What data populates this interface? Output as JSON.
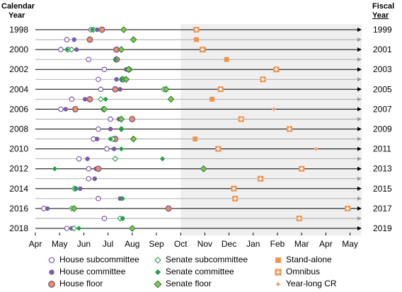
{
  "chart_data": {
    "type": "scatter",
    "title": "",
    "left_axis_title": [
      "Calendar",
      "Year"
    ],
    "right_axis_title": [
      "Fiscal",
      "Year"
    ],
    "x_tick_labels": [
      "Apr",
      "May",
      "Jun",
      "Jul",
      "Aug",
      "Sep",
      "Oct",
      "Nov",
      "Dec",
      "Jan",
      "Feb",
      "Mar",
      "Apr",
      "May"
    ],
    "calendar_years": [
      "1998",
      "1999",
      "2000",
      "2001",
      "2002",
      "2003",
      "2004",
      "2005",
      "2006",
      "2007",
      "2008",
      "2009",
      "2010",
      "2011",
      "2012",
      "2013",
      "2014",
      "2015",
      "2016",
      "2017",
      "2018"
    ],
    "calendar_year_labels": [
      "1998",
      "2000",
      "2002",
      "2004",
      "2006",
      "2008",
      "2010",
      "2012",
      "2014",
      "2016",
      "2018"
    ],
    "fiscal_year_labels": [
      "1999",
      "2001",
      "2003",
      "2005",
      "2007",
      "2009",
      "2011",
      "2013",
      "2015",
      "2017",
      "2019"
    ],
    "x_unit": "month index from Apr 1 of calendar year (0 = Apr 1, 6 = Oct 1, 13 = May 1 of next year)",
    "xlim": [
      0,
      13
    ],
    "shaded_region": [
      6,
      13
    ],
    "colors": {
      "purple": "#7B5BA6",
      "green": "#22A046",
      "orange": "#F0924A",
      "lightgreen": "#8BC34A"
    },
    "legend_position": "bottom",
    "series": [
      {
        "name": "House subcommittee",
        "marker": "open-circle",
        "color": "#7B5BA6",
        "points": [
          {
            "year": "1998",
            "x": 2.3
          },
          {
            "year": "1999",
            "x": 1.3
          },
          {
            "year": "2000",
            "x": 1.05
          },
          {
            "year": "2000",
            "x": 1.35
          },
          {
            "year": "2001",
            "x": 2.2
          },
          {
            "year": "2002",
            "x": 2.85
          },
          {
            "year": "2003",
            "x": 2.6
          },
          {
            "year": "2004",
            "x": 2.7
          },
          {
            "year": "2005",
            "x": 1.5
          },
          {
            "year": "2006",
            "x": 1.05
          },
          {
            "year": "2007",
            "x": 3.1
          },
          {
            "year": "2008",
            "x": 2.6
          },
          {
            "year": "2009",
            "x": 2.4
          },
          {
            "year": "2010",
            "x": 2.95
          },
          {
            "year": "2011",
            "x": 1.8
          },
          {
            "year": "2012",
            "x": 2.2
          },
          {
            "year": "2013",
            "x": 2.2
          },
          {
            "year": "2014",
            "x": 1.65
          },
          {
            "year": "2015",
            "x": 2.6
          },
          {
            "year": "2016",
            "x": 0.35
          },
          {
            "year": "2017",
            "x": 2.85
          },
          {
            "year": "2018",
            "x": 1.3
          }
        ]
      },
      {
        "name": "House committee",
        "marker": "filled-circle",
        "color": "#7B5BA6",
        "points": [
          {
            "year": "1998",
            "x": 2.55
          },
          {
            "year": "1999",
            "x": 1.6
          },
          {
            "year": "2000",
            "x": 1.7
          },
          {
            "year": "2001",
            "x": 3.4
          },
          {
            "year": "2002",
            "x": 3.75
          },
          {
            "year": "2003",
            "x": 3.35
          },
          {
            "year": "2004",
            "x": 3.5
          },
          {
            "year": "2005",
            "x": 2.05
          },
          {
            "year": "2006",
            "x": 1.25
          },
          {
            "year": "2007",
            "x": 3.45
          },
          {
            "year": "2008",
            "x": 3.1
          },
          {
            "year": "2009",
            "x": 2.55
          },
          {
            "year": "2010",
            "x": 3.25
          },
          {
            "year": "2011",
            "x": 2.15
          },
          {
            "year": "2012",
            "x": 2.5
          },
          {
            "year": "2013",
            "x": 2.45
          },
          {
            "year": "2014",
            "x": 1.85
          },
          {
            "year": "2015",
            "x": 3.5
          },
          {
            "year": "2016",
            "x": 0.5
          },
          {
            "year": "2017",
            "x": 3.6
          },
          {
            "year": "2018",
            "x": 1.5
          }
        ]
      },
      {
        "name": "House floor",
        "marker": "orange-circle-purple-ring",
        "color": "#F0924A",
        "points": [
          {
            "year": "1998",
            "x": 2.75
          },
          {
            "year": "1999",
            "x": 2.25
          },
          {
            "year": "2000",
            "x": 3.35
          },
          {
            "year": "2001",
            "x": 3.35
          },
          {
            "year": "2003",
            "x": 3.6
          },
          {
            "year": "2004",
            "x": 3.3
          },
          {
            "year": "2005",
            "x": 2.25
          },
          {
            "year": "2006",
            "x": 1.65
          },
          {
            "year": "2007",
            "x": 4.0
          },
          {
            "year": "2009",
            "x": 3.3
          },
          {
            "year": "2012",
            "x": 2.6
          },
          {
            "year": "2016",
            "x": 5.5
          }
        ]
      },
      {
        "name": "Senate subcommittee",
        "marker": "open-diamond",
        "color": "#22A046",
        "points": [
          {
            "year": "1998",
            "x": 2.4
          },
          {
            "year": "2000",
            "x": 1.5
          },
          {
            "year": "2002",
            "x": 3.9
          },
          {
            "year": "2003",
            "x": 3.6
          },
          {
            "year": "2004",
            "x": 5.3
          },
          {
            "year": "2005",
            "x": 2.7
          },
          {
            "year": "2006",
            "x": 2.8
          },
          {
            "year": "2008",
            "x": 3.55
          },
          {
            "year": "2009",
            "x": 3.2
          },
          {
            "year": "2011",
            "x": 3.3
          },
          {
            "year": "2014",
            "x": 1.6
          },
          {
            "year": "2016",
            "x": 1.5
          },
          {
            "year": "2017",
            "x": 3.5
          },
          {
            "year": "2018",
            "x": 1.6
          }
        ]
      },
      {
        "name": "Senate committee",
        "marker": "filled-diamond",
        "color": "#22A046",
        "points": [
          {
            "year": "1998",
            "x": 2.35
          },
          {
            "year": "2000",
            "x": 1.3
          },
          {
            "year": "2001",
            "x": 3.3
          },
          {
            "year": "2002",
            "x": 3.8
          },
          {
            "year": "2003",
            "x": 3.55
          },
          {
            "year": "2004",
            "x": 5.4
          },
          {
            "year": "2005",
            "x": 2.9
          },
          {
            "year": "2006",
            "x": 2.8
          },
          {
            "year": "2008",
            "x": 3.55
          },
          {
            "year": "2009",
            "x": 3.1
          },
          {
            "year": "2010",
            "x": 3.55
          },
          {
            "year": "2011",
            "x": 5.25
          },
          {
            "year": "2012",
            "x": 0.8
          },
          {
            "year": "2014",
            "x": 1.65
          },
          {
            "year": "2015",
            "x": 3.6
          },
          {
            "year": "2016",
            "x": 1.6
          },
          {
            "year": "2017",
            "x": 3.6
          },
          {
            "year": "2018",
            "x": 1.8
          }
        ]
      },
      {
        "name": "Senate floor",
        "marker": "green-diamond-dark-border",
        "color": "#8BC34A",
        "points": [
          {
            "year": "1998",
            "x": 3.65
          },
          {
            "year": "1999",
            "x": 4.05
          },
          {
            "year": "2000",
            "x": 3.55
          },
          {
            "year": "2002",
            "x": 3.85
          },
          {
            "year": "2003",
            "x": 3.75
          },
          {
            "year": "2004",
            "x": 5.4
          },
          {
            "year": "2005",
            "x": 5.6
          },
          {
            "year": "2006",
            "x": 2.85
          },
          {
            "year": "2007",
            "x": 3.55
          },
          {
            "year": "2009",
            "x": 4.05
          },
          {
            "year": "2012",
            "x": 6.95
          },
          {
            "year": "2016",
            "x": 1.6
          },
          {
            "year": "2018",
            "x": 4.0
          }
        ]
      },
      {
        "name": "Stand-alone",
        "marker": "filled-square",
        "color": "#F0924A",
        "points": [
          {
            "year": "1999",
            "x": 6.65
          },
          {
            "year": "2000",
            "x": 6.95
          },
          {
            "year": "2001",
            "x": 7.9
          },
          {
            "year": "2005",
            "x": 7.3
          },
          {
            "year": "2009",
            "x": 6.6
          }
        ]
      },
      {
        "name": "Omnibus",
        "marker": "square-cross",
        "color": "#F0924A",
        "points": [
          {
            "year": "1998",
            "x": 6.65
          },
          {
            "year": "2000",
            "x": 6.9
          },
          {
            "year": "2002",
            "x": 9.95
          },
          {
            "year": "2003",
            "x": 9.4
          },
          {
            "year": "2004",
            "x": 7.65
          },
          {
            "year": "2007",
            "x": 8.5
          },
          {
            "year": "2008",
            "x": 10.5
          },
          {
            "year": "2010",
            "x": 7.55
          },
          {
            "year": "2012",
            "x": 11.0
          },
          {
            "year": "2013",
            "x": 9.3
          },
          {
            "year": "2014",
            "x": 8.2
          },
          {
            "year": "2015",
            "x": 8.25
          },
          {
            "year": "2016",
            "x": 12.9
          },
          {
            "year": "2017",
            "x": 10.9
          }
        ]
      },
      {
        "name": "Year-long CR",
        "marker": "small-cross",
        "color": "#F0924A",
        "points": [
          {
            "year": "2006",
            "x": 9.85
          },
          {
            "year": "2010",
            "x": 11.6
          }
        ]
      }
    ]
  }
}
